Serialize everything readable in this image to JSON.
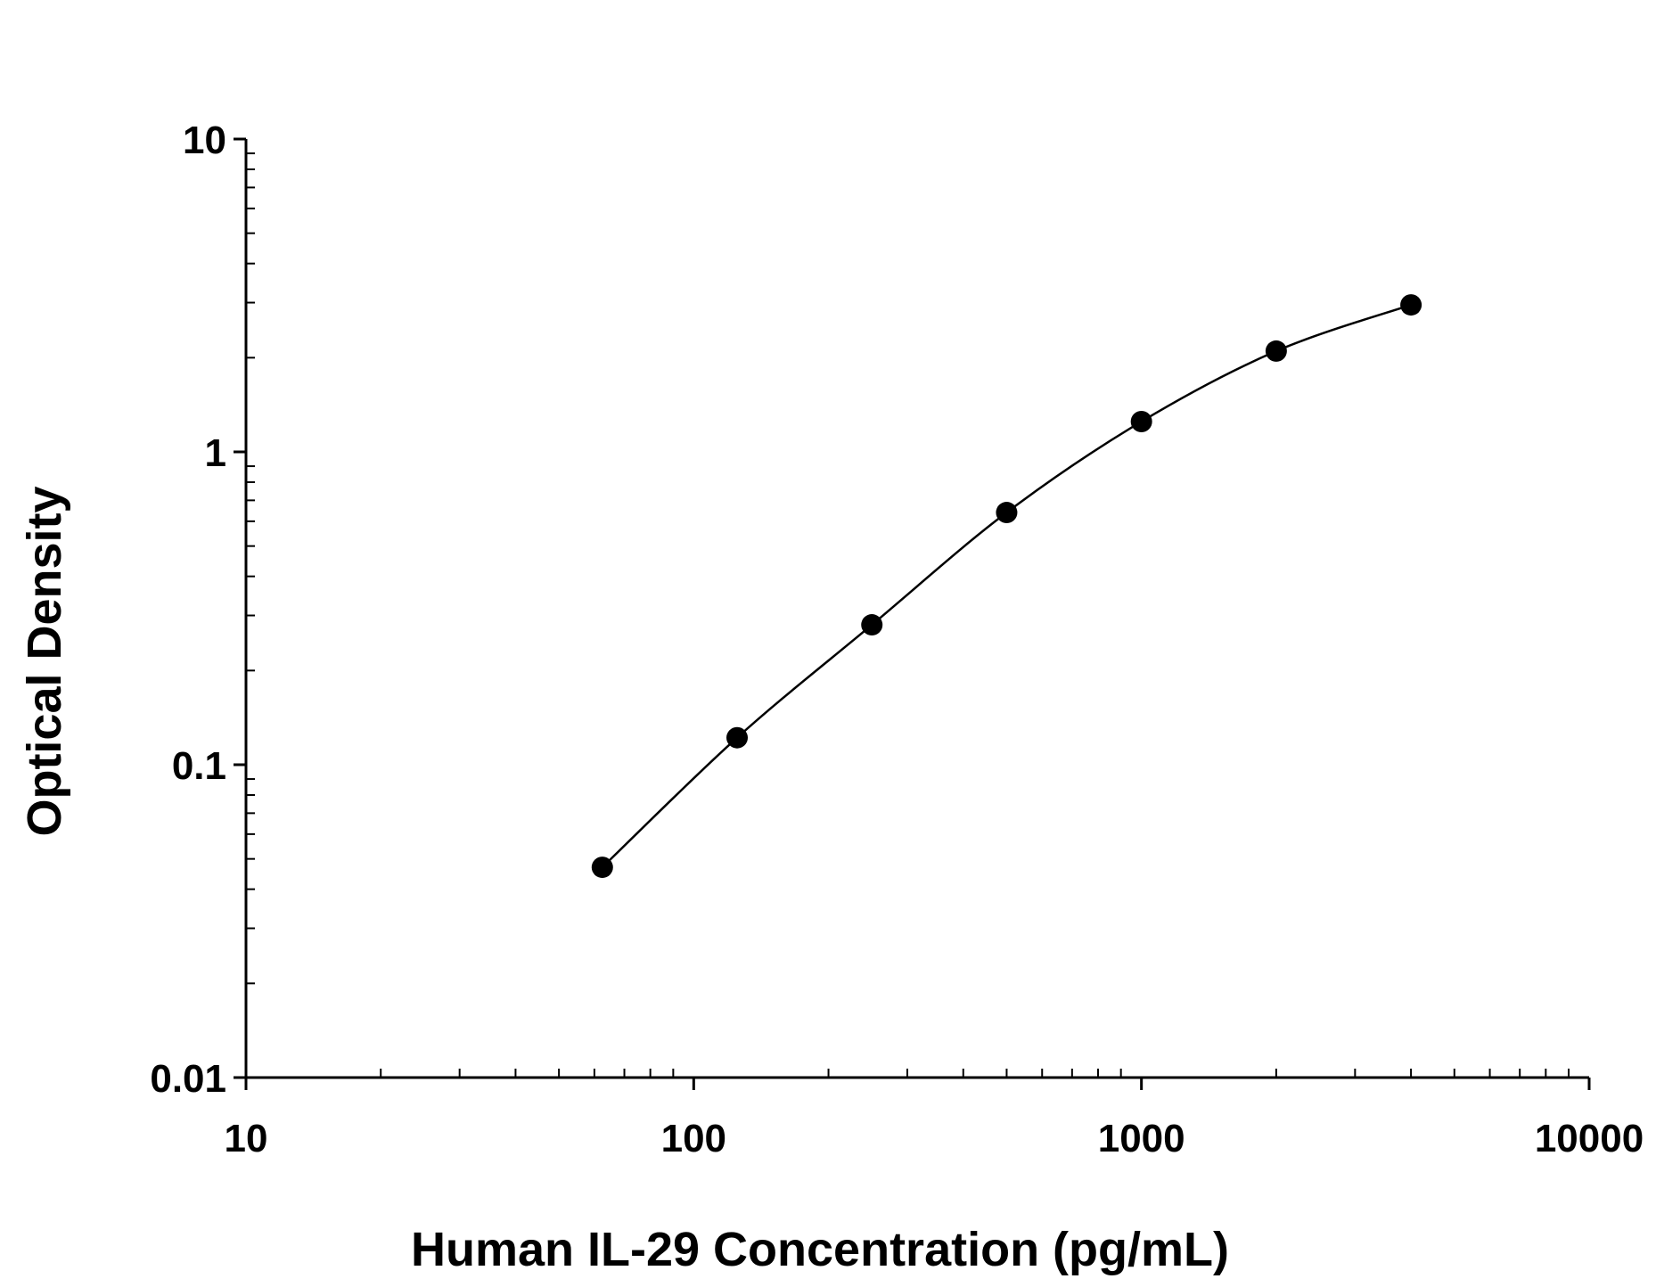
{
  "chart_data": {
    "type": "scatter",
    "title": "",
    "xlabel": "Human IL-29 Concentration (pg/mL)",
    "ylabel": "Optical Density",
    "x_scale": "log",
    "y_scale": "log",
    "xlim": [
      10,
      10000
    ],
    "ylim": [
      0.01,
      10
    ],
    "x_ticks": [
      {
        "value": 10,
        "label": "10"
      },
      {
        "value": 100,
        "label": "100"
      },
      {
        "value": 1000,
        "label": "1000"
      },
      {
        "value": 10000,
        "label": "10000"
      }
    ],
    "y_ticks": [
      {
        "value": 0.01,
        "label": "0.01"
      },
      {
        "value": 0.1,
        "label": "0.1"
      },
      {
        "value": 1,
        "label": "1"
      },
      {
        "value": 10,
        "label": "10"
      }
    ],
    "grid": false,
    "legend": "none",
    "series": [
      {
        "x": [
          62.5,
          125,
          250,
          500,
          1000,
          2000,
          4000
        ],
        "y": [
          0.047,
          0.122,
          0.28,
          0.64,
          1.25,
          2.1,
          2.95
        ],
        "marker": "filled-circle",
        "fit_line": "smooth-curve",
        "color": "#000000"
      }
    ]
  }
}
